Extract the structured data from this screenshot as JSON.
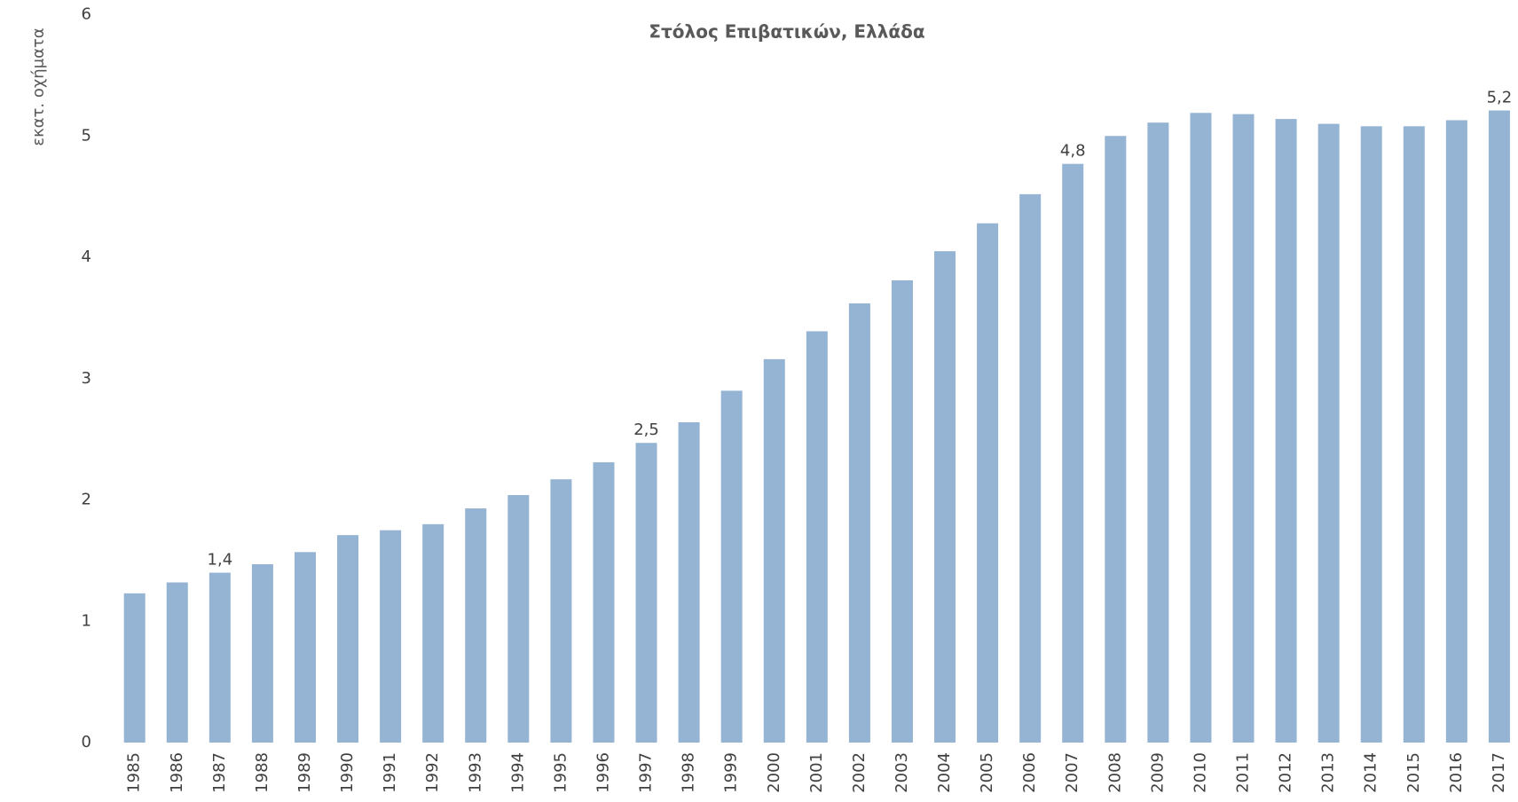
{
  "chart_data": {
    "type": "bar",
    "title": "Στόλος Επιβατικών, Ελλάδα",
    "y_label": "εκατ. οχήματα",
    "categories": [
      "1985",
      "1986",
      "1987",
      "1988",
      "1989",
      "1990",
      "1991",
      "1992",
      "1993",
      "1994",
      "1995",
      "1996",
      "1997",
      "1998",
      "1999",
      "2000",
      "2001",
      "2002",
      "2003",
      "2004",
      "2005",
      "2006",
      "2007",
      "2008",
      "2009",
      "2010",
      "2011",
      "2012",
      "2013",
      "2014",
      "2015",
      "2016",
      "2017"
    ],
    "values": [
      1.23,
      1.32,
      1.4,
      1.47,
      1.57,
      1.71,
      1.75,
      1.8,
      1.93,
      2.04,
      2.17,
      2.31,
      2.47,
      2.64,
      2.9,
      3.16,
      3.39,
      3.62,
      3.81,
      4.05,
      4.28,
      4.52,
      4.77,
      5.0,
      5.11,
      5.19,
      5.18,
      5.14,
      5.1,
      5.08,
      5.08,
      5.13,
      5.21
    ],
    "value_labels": [
      null,
      null,
      "1,4",
      null,
      null,
      null,
      null,
      null,
      null,
      null,
      null,
      null,
      "2,5",
      null,
      null,
      null,
      null,
      null,
      null,
      null,
      null,
      null,
      "4,8",
      null,
      null,
      null,
      null,
      null,
      null,
      null,
      null,
      null,
      "5,2"
    ],
    "color": "#95b3d3",
    "ylim": [
      0,
      6
    ],
    "yticks": [
      0,
      1,
      2,
      3,
      4,
      5,
      6
    ],
    "grid": false
  }
}
